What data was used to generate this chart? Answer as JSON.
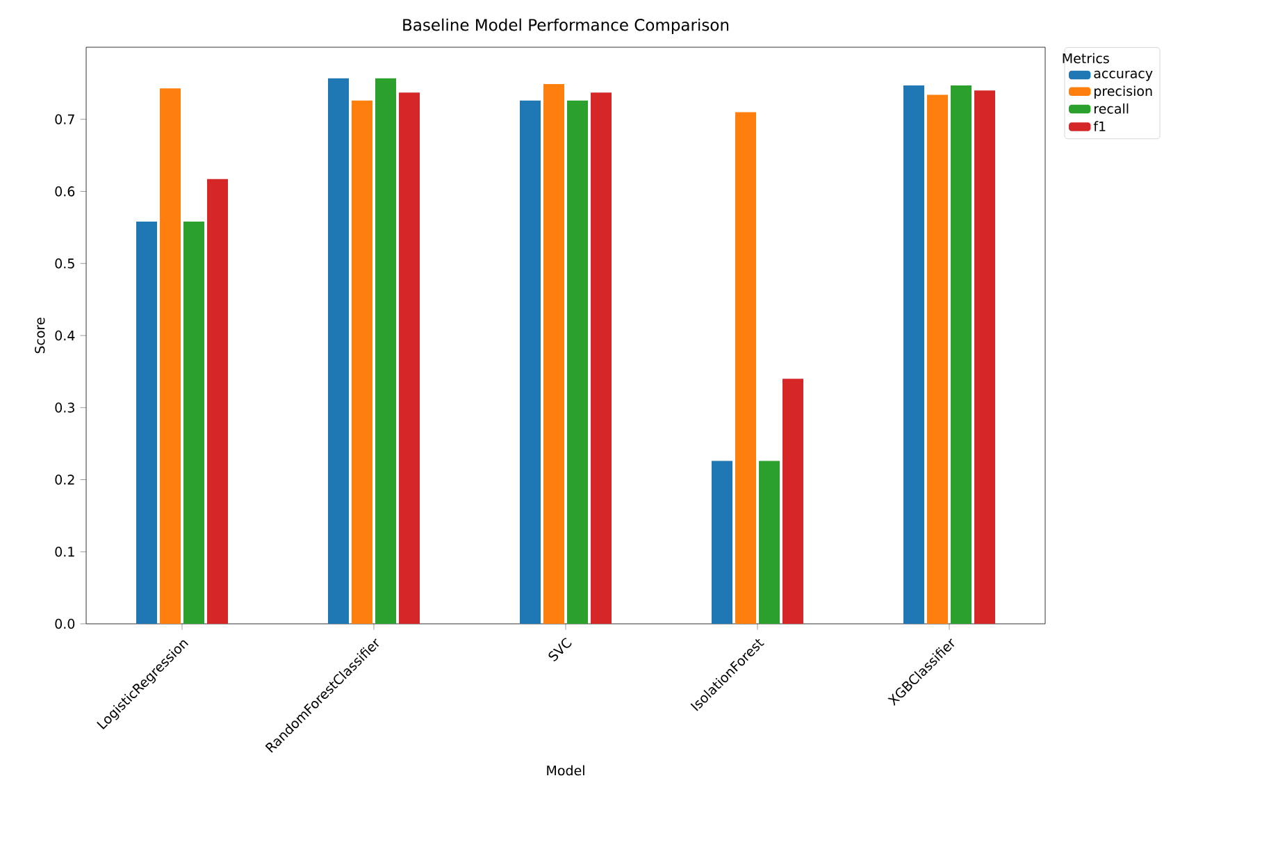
{
  "chart_data": {
    "type": "bar",
    "title": "Baseline Model Performance Comparison",
    "xlabel": "Model",
    "ylabel": "Score",
    "legend_title": "Metrics",
    "categories": [
      "LogisticRegression",
      "RandomForestClassifier",
      "SVC",
      "IsolationForest",
      "XGBClassifier"
    ],
    "series": [
      {
        "name": "accuracy",
        "color": "#1f77b4",
        "values": [
          0.558,
          0.757,
          0.726,
          0.226,
          0.747
        ]
      },
      {
        "name": "precision",
        "color": "#ff7f0e",
        "values": [
          0.743,
          0.726,
          0.749,
          0.71,
          0.734
        ]
      },
      {
        "name": "recall",
        "color": "#2ca02c",
        "values": [
          0.558,
          0.757,
          0.726,
          0.226,
          0.747
        ]
      },
      {
        "name": "f1",
        "color": "#d62728",
        "values": [
          0.617,
          0.737,
          0.737,
          0.34,
          0.74
        ]
      }
    ],
    "ylim": [
      0,
      0.8
    ],
    "yticks": [
      {
        "value": 0,
        "label": "0.0"
      },
      0.1,
      0.2,
      0.3,
      0.4,
      0.5,
      0.6,
      0.7
    ],
    "grid": false,
    "legend": "right"
  }
}
